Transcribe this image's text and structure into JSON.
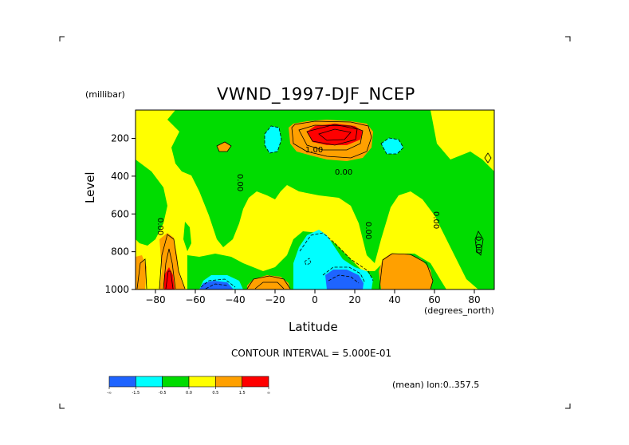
{
  "chart_data": {
    "type": "contour",
    "title": "VWND_1997-DJF_NCEP",
    "ylabel": "Level",
    "y_units": "(millibar)",
    "xlabel": "Latitude",
    "x_units": "(degrees_north)",
    "xlim": [
      -90,
      90
    ],
    "ylim": [
      1000,
      50
    ],
    "xticks": [
      "-80",
      "-60",
      "-40",
      "-20",
      "0",
      "20",
      "40",
      "60",
      "80"
    ],
    "yticks": [
      "200",
      "400",
      "600",
      "800",
      "1000"
    ],
    "contour_interval_text": "CONTOUR INTERVAL = 5.000E-01",
    "mean_text": "(mean) lon:0..357.5",
    "contour_labels": [
      "0.00",
      "0.00",
      "0.00",
      "0.00",
      "0.00",
      "0.00",
      "1.00"
    ],
    "colorbar": {
      "colors": [
        "#1e64ff",
        "#00ffff",
        "#00dc00",
        "#ffff00",
        "#ffa000",
        "#ff0000"
      ],
      "labels": [
        "-∞",
        "-1.5",
        "-0.5",
        "0.0",
        "0.5",
        "1.5",
        "∞"
      ]
    },
    "regions": [
      {
        "level": "negative_strong",
        "color": "#1e64ff",
        "x": [
          -60,
          -42
        ],
        "y": [
          960,
          1000
        ]
      },
      {
        "level": "negative_strong",
        "color": "#1e64ff",
        "x": [
          5,
          25
        ],
        "y": [
          880,
          1000
        ]
      },
      {
        "level": "negative_weak",
        "color": "#00ffff",
        "x": [
          -8,
          30
        ],
        "y": [
          760,
          1000
        ]
      },
      {
        "level": "negative_weak",
        "color": "#00ffff",
        "x": [
          -5,
          5
        ],
        "y": [
          130,
          290
        ]
      },
      {
        "level": "negative_weak",
        "color": "#00ffff",
        "x": [
          30,
          42
        ],
        "y": [
          170,
          230
        ]
      },
      {
        "level": "positive_strong",
        "color": "#ff0000",
        "x": [
          0,
          25
        ],
        "y": [
          120,
          190
        ]
      },
      {
        "level": "positive_mid",
        "color": "#ffa000",
        "x": [
          -15,
          35
        ],
        "y": [
          100,
          260
        ]
      },
      {
        "level": "positive_mid",
        "color": "#ffa000",
        "x": [
          -80,
          -65
        ],
        "y": [
          800,
          1000
        ]
      },
      {
        "level": "positive_mid",
        "color": "#ffa000",
        "x": [
          -35,
          -15
        ],
        "y": [
          930,
          1000
        ]
      },
      {
        "level": "positive_mid",
        "color": "#ffa000",
        "x": [
          38,
          60
        ],
        "y": [
          820,
          1000
        ]
      }
    ]
  }
}
